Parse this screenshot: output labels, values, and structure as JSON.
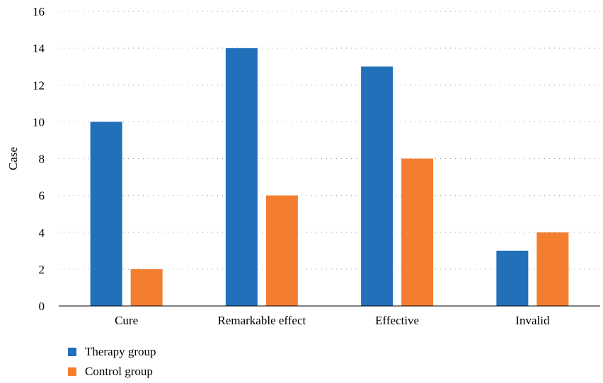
{
  "chart_data": {
    "type": "bar",
    "categories": [
      "Cure",
      "Remarkable effect",
      "Effective",
      "Invalid"
    ],
    "series": [
      {
        "name": "Therapy group",
        "values": [
          10,
          14,
          13,
          3
        ],
        "color": "#2270ba"
      },
      {
        "name": "Control group",
        "values": [
          2,
          6,
          8,
          4
        ],
        "color": "#f37e30"
      }
    ],
    "title": "",
    "xlabel": "",
    "ylabel": "Case",
    "ylim": [
      0,
      16
    ],
    "yticks": [
      0,
      2,
      4,
      6,
      8,
      10,
      12,
      14,
      16
    ],
    "grid": true,
    "legend_position": "bottom-left"
  }
}
